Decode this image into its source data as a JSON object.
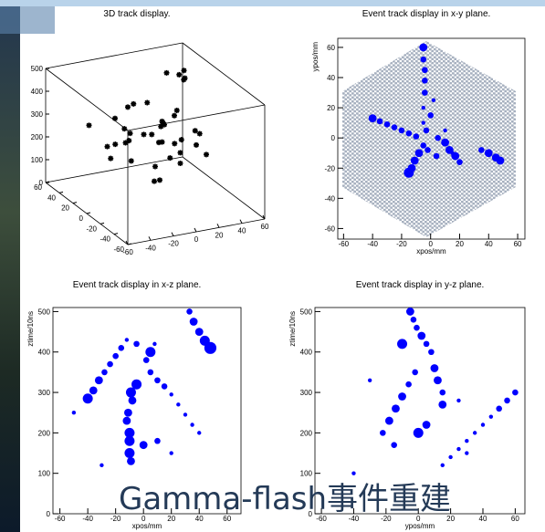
{
  "caption": "Gamma-flash事件重建",
  "chart_data": [
    {
      "type": "scatter3d",
      "title": "3D track display.",
      "xlim": [
        -60,
        60
      ],
      "ylim": [
        -60,
        60
      ],
      "zlim": [
        0,
        500
      ],
      "xticks": [
        -60,
        -40,
        -20,
        0,
        20,
        40,
        60
      ],
      "yticks": [
        -60,
        -40,
        -20,
        0,
        20,
        40,
        60
      ],
      "zticks": [
        0,
        100,
        200,
        300,
        400,
        500
      ],
      "series": [
        {
          "color": "#000000",
          "x": [
            -20,
            -10,
            0,
            10,
            20,
            -30,
            -15,
            5,
            15,
            -5,
            25,
            -25,
            0,
            10,
            -10,
            30,
            -35,
            20,
            -5,
            8,
            -18,
            12,
            45,
            50,
            52,
            48,
            40,
            -40,
            35,
            -20,
            0,
            15,
            -28,
            22,
            -8,
            5,
            -12,
            28,
            -45,
            38
          ],
          "y": [
            10,
            0,
            -10,
            5,
            -5,
            20,
            -20,
            20,
            15,
            30,
            10,
            -5,
            0,
            -20,
            15,
            -15,
            0,
            25,
            -30,
            8,
            5,
            -8,
            40,
            40,
            45,
            38,
            50,
            30,
            30,
            -40,
            40,
            -35,
            12,
            0,
            -12,
            -5,
            25,
            -28,
            -10,
            5
          ],
          "z": [
            250,
            300,
            280,
            320,
            260,
            220,
            350,
            380,
            300,
            200,
            350,
            330,
            150,
            200,
            400,
            300,
            280,
            250,
            260,
            230,
            180,
            380,
            420,
            400,
            380,
            440,
            410,
            300,
            150,
            200,
            320,
            310,
            360,
            190,
            120,
            340,
            270,
            240,
            250,
            260
          ]
        }
      ]
    },
    {
      "type": "scatter",
      "title": "Event track display in x-y plane.",
      "xlabel": "xpos/mm",
      "ylabel": "ypos/mm",
      "xlim": [
        -64,
        65
      ],
      "ylim": [
        -67,
        66
      ],
      "xticks": [
        -60,
        -40,
        -20,
        0,
        20,
        40,
        60
      ],
      "yticks": [
        -60,
        -40,
        -20,
        0,
        20,
        40,
        60
      ],
      "series": [
        {
          "color": "#0000ff",
          "x": [
            -5,
            -5,
            -4,
            -4,
            -4,
            -5,
            -5,
            -3,
            -40,
            -35,
            -30,
            -25,
            -20,
            -15,
            -10,
            -5,
            -8,
            -11,
            -13,
            -15,
            5,
            10,
            13,
            17,
            20,
            35,
            40,
            45,
            48,
            0,
            2,
            4,
            -2,
            10,
            15
          ],
          "values": [
            60,
            52,
            45,
            38,
            30,
            20,
            10,
            5,
            13,
            11,
            9,
            7,
            5,
            3,
            1,
            -5,
            -10,
            -15,
            -20,
            -23,
            0,
            -3,
            -8,
            -12,
            -16,
            -8,
            -10,
            -13,
            -15,
            15,
            25,
            -12,
            -8,
            5,
            -10
          ],
          "sizes": [
            4,
            3,
            3,
            3,
            3,
            2,
            2,
            3,
            4,
            3,
            3,
            3,
            3,
            3,
            3,
            3,
            4,
            4,
            4,
            5,
            3,
            4,
            4,
            4,
            3,
            3,
            4,
            4,
            4,
            3,
            2,
            3,
            3,
            2,
            2
          ]
        }
      ]
    },
    {
      "type": "scatter",
      "title": "Event track display in x-z plane.",
      "xlabel": "xpos/mm",
      "ylabel": "ztime/10ns",
      "xlim": [
        -65,
        70
      ],
      "ylim": [
        0,
        510
      ],
      "xticks": [
        -60,
        -40,
        -20,
        0,
        20,
        40,
        60
      ],
      "yticks": [
        0,
        100,
        200,
        300,
        400,
        500
      ],
      "series": [
        {
          "color": "#0000ff",
          "x": [
            -40,
            -36,
            -32,
            -28,
            -24,
            -20,
            -16,
            -12,
            33,
            36,
            40,
            44,
            48,
            -10,
            -10,
            -11,
            -9,
            -8,
            -12,
            -10,
            -9,
            5,
            10,
            15,
            20,
            25,
            30,
            35,
            40,
            -5,
            2,
            5,
            0,
            10,
            -30,
            -50,
            20,
            -5,
            8
          ],
          "values": [
            285,
            305,
            330,
            350,
            370,
            390,
            410,
            430,
            500,
            475,
            450,
            428,
            410,
            150,
            200,
            250,
            300,
            280,
            230,
            180,
            130,
            350,
            330,
            315,
            295,
            270,
            245,
            220,
            200,
            320,
            380,
            400,
            170,
            180,
            120,
            250,
            150,
            420,
            420
          ],
          "sizes": [
            5,
            4,
            4,
            3,
            3,
            3,
            3,
            2,
            3,
            4,
            4,
            5,
            6,
            5,
            5,
            4,
            5,
            4,
            4,
            5,
            4,
            3,
            3,
            3,
            2,
            2,
            2,
            2,
            2,
            5,
            3,
            5,
            4,
            3,
            2,
            2,
            2,
            3,
            2
          ]
        }
      ]
    },
    {
      "type": "scatter",
      "title": "Event track display in y-z plane.",
      "xlabel": "ypos/mm",
      "ylabel": "ztime/10ns",
      "xlim": [
        -64,
        66
      ],
      "ylim": [
        0,
        510
      ],
      "xticks": [
        -60,
        -40,
        -20,
        0,
        20,
        40,
        60
      ],
      "yticks": [
        0,
        100,
        200,
        300,
        400,
        500
      ],
      "series": [
        {
          "color": "#0000ff",
          "x": [
            -5,
            -3,
            -1,
            2,
            5,
            8,
            10,
            12,
            15,
            -22,
            -18,
            -14,
            -10,
            -6,
            -2,
            60,
            55,
            50,
            45,
            40,
            35,
            30,
            25,
            20,
            15,
            0,
            5,
            15,
            -10,
            -30,
            -40,
            30,
            -15,
            25
          ],
          "values": [
            500,
            480,
            460,
            440,
            420,
            400,
            360,
            330,
            300,
            200,
            230,
            260,
            290,
            320,
            350,
            300,
            280,
            260,
            240,
            220,
            200,
            180,
            160,
            140,
            120,
            200,
            220,
            270,
            420,
            330,
            100,
            150,
            170,
            280
          ],
          "sizes": [
            4,
            3,
            3,
            4,
            3,
            3,
            4,
            4,
            3,
            3,
            4,
            4,
            4,
            3,
            3,
            3,
            3,
            3,
            2,
            2,
            2,
            2,
            2,
            2,
            2,
            5,
            4,
            4,
            5,
            2,
            2,
            2,
            3,
            2
          ]
        }
      ]
    }
  ]
}
